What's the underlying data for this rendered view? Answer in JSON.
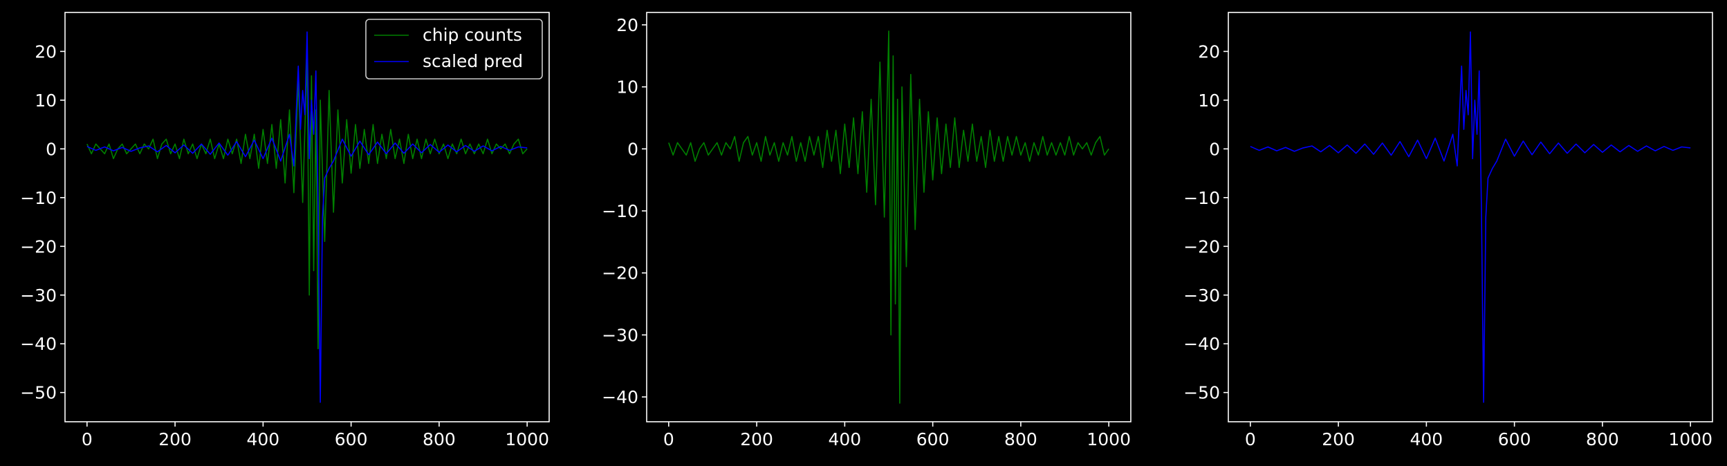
{
  "figure": {
    "background": "#000000",
    "foreground": "#ffffff"
  },
  "chart_data": [
    {
      "type": "line",
      "title": "",
      "xlabel": "",
      "ylabel": "",
      "xlim": [
        -50,
        1050
      ],
      "ylim": [
        -56,
        28
      ],
      "xticks": [
        0,
        200,
        400,
        600,
        800,
        1000
      ],
      "xtick_labels": [
        "0",
        "200",
        "400",
        "600",
        "800",
        "1000"
      ],
      "yticks": [
        20,
        10,
        0,
        -10,
        -20,
        -30,
        -40,
        -50
      ],
      "ytick_labels": [
        "20",
        "10",
        "0",
        "−10",
        "−20",
        "−30",
        "−40",
        "−50"
      ],
      "legend": {
        "position": "top-right",
        "entries": [
          "chip counts",
          "scaled pred"
        ]
      },
      "grid": false,
      "series": [
        {
          "name": "chip counts",
          "color": "#008000",
          "x": [
            0,
            10,
            20,
            30,
            40,
            50,
            60,
            70,
            80,
            90,
            100,
            110,
            120,
            130,
            140,
            150,
            160,
            170,
            180,
            190,
            200,
            210,
            220,
            230,
            240,
            250,
            260,
            270,
            280,
            290,
            300,
            310,
            320,
            330,
            340,
            350,
            360,
            370,
            380,
            390,
            400,
            410,
            420,
            430,
            440,
            450,
            460,
            470,
            480,
            490,
            500,
            505,
            510,
            515,
            520,
            525,
            530,
            540,
            550,
            560,
            570,
            580,
            590,
            600,
            610,
            620,
            630,
            640,
            650,
            660,
            670,
            680,
            690,
            700,
            710,
            720,
            730,
            740,
            750,
            760,
            770,
            780,
            790,
            800,
            810,
            820,
            830,
            840,
            850,
            860,
            870,
            880,
            890,
            900,
            910,
            920,
            930,
            940,
            950,
            960,
            970,
            980,
            990,
            1000
          ],
          "y": [
            1,
            -1,
            1,
            0,
            -1,
            1,
            -2,
            0,
            1,
            -1,
            0,
            1,
            -1,
            1,
            0,
            2,
            -2,
            1,
            2,
            -1,
            1,
            -2,
            2,
            -1,
            1,
            -2,
            1,
            -1,
            2,
            -2,
            1,
            -2,
            2,
            -1,
            2,
            -3,
            3,
            -2,
            3,
            -4,
            4,
            -3,
            5,
            -4,
            6,
            -7,
            8,
            -9,
            14,
            -11,
            19,
            -30,
            15,
            -25,
            8,
            -41,
            10,
            -19,
            12,
            -13,
            8,
            -7,
            6,
            -5,
            5,
            -4,
            4,
            -3,
            5,
            -3,
            3,
            -2,
            4,
            -2,
            2,
            -3,
            3,
            -2,
            2,
            -2,
            2,
            -1,
            2,
            -1,
            1,
            -2,
            1,
            -1,
            2,
            -1,
            1,
            -1,
            1,
            -1,
            2,
            -1,
            1,
            0,
            1,
            -1,
            1,
            2,
            -1,
            0
          ]
        },
        {
          "name": "scaled pred",
          "color": "#0000ff",
          "x": [
            0,
            20,
            40,
            60,
            80,
            100,
            120,
            140,
            160,
            180,
            200,
            220,
            240,
            260,
            280,
            300,
            320,
            340,
            360,
            380,
            400,
            420,
            440,
            460,
            470,
            480,
            485,
            490,
            495,
            500,
            505,
            510,
            515,
            520,
            525,
            530,
            535,
            540,
            550,
            560,
            580,
            600,
            620,
            640,
            660,
            680,
            700,
            720,
            740,
            760,
            780,
            800,
            820,
            840,
            860,
            880,
            900,
            920,
            940,
            960,
            980,
            1000
          ],
          "y": [
            0.5,
            -0.3,
            0.4,
            -0.4,
            0.3,
            -0.5,
            0.2,
            0.6,
            -0.6,
            0.7,
            -0.8,
            0.8,
            -0.9,
            1.0,
            -1.1,
            1.2,
            -1.3,
            1.5,
            -1.6,
            1.8,
            -2.0,
            2.2,
            -2.5,
            3.0,
            -3.5,
            17,
            4,
            12,
            7,
            24,
            -2,
            10,
            3,
            16,
            -12,
            -52,
            -14,
            -6,
            -4,
            -2.5,
            2.0,
            -1.5,
            1.6,
            -1.2,
            1.4,
            -1.0,
            1.2,
            -0.9,
            1.0,
            -0.8,
            0.9,
            -0.7,
            0.8,
            -0.6,
            0.7,
            -0.5,
            0.6,
            -0.4,
            0.5,
            -0.3,
            0.4,
            0.2
          ]
        }
      ]
    },
    {
      "type": "line",
      "title": "",
      "xlabel": "",
      "ylabel": "",
      "xlim": [
        -50,
        1050
      ],
      "ylim": [
        -44,
        22
      ],
      "xticks": [
        0,
        200,
        400,
        600,
        800,
        1000
      ],
      "xtick_labels": [
        "0",
        "200",
        "400",
        "600",
        "800",
        "1000"
      ],
      "yticks": [
        20,
        10,
        0,
        -10,
        -20,
        -30,
        -40
      ],
      "ytick_labels": [
        "20",
        "10",
        "0",
        "−10",
        "−20",
        "−30",
        "−40"
      ],
      "grid": false,
      "series": [
        {
          "name": "chip counts",
          "color": "#008000",
          "x": [
            0,
            10,
            20,
            30,
            40,
            50,
            60,
            70,
            80,
            90,
            100,
            110,
            120,
            130,
            140,
            150,
            160,
            170,
            180,
            190,
            200,
            210,
            220,
            230,
            240,
            250,
            260,
            270,
            280,
            290,
            300,
            310,
            320,
            330,
            340,
            350,
            360,
            370,
            380,
            390,
            400,
            410,
            420,
            430,
            440,
            450,
            460,
            470,
            480,
            490,
            500,
            505,
            510,
            515,
            520,
            525,
            530,
            540,
            550,
            560,
            570,
            580,
            590,
            600,
            610,
            620,
            630,
            640,
            650,
            660,
            670,
            680,
            690,
            700,
            710,
            720,
            730,
            740,
            750,
            760,
            770,
            780,
            790,
            800,
            810,
            820,
            830,
            840,
            850,
            860,
            870,
            880,
            890,
            900,
            910,
            920,
            930,
            940,
            950,
            960,
            970,
            980,
            990,
            1000
          ],
          "y": [
            1,
            -1,
            1,
            0,
            -1,
            1,
            -2,
            0,
            1,
            -1,
            0,
            1,
            -1,
            1,
            0,
            2,
            -2,
            1,
            2,
            -1,
            1,
            -2,
            2,
            -1,
            1,
            -2,
            1,
            -1,
            2,
            -2,
            1,
            -2,
            2,
            -1,
            2,
            -3,
            3,
            -2,
            3,
            -4,
            4,
            -3,
            5,
            -4,
            6,
            -7,
            8,
            -9,
            14,
            -11,
            19,
            -30,
            15,
            -25,
            8,
            -41,
            10,
            -19,
            12,
            -13,
            8,
            -7,
            6,
            -5,
            5,
            -4,
            4,
            -3,
            5,
            -3,
            3,
            -2,
            4,
            -2,
            2,
            -3,
            3,
            -2,
            2,
            -2,
            2,
            -1,
            2,
            -1,
            1,
            -2,
            1,
            -1,
            2,
            -1,
            1,
            -1,
            1,
            -1,
            2,
            -1,
            1,
            0,
            1,
            -1,
            1,
            2,
            -1,
            0
          ]
        }
      ]
    },
    {
      "type": "line",
      "title": "",
      "xlabel": "",
      "ylabel": "",
      "xlim": [
        -50,
        1050
      ],
      "ylim": [
        -56,
        28
      ],
      "xticks": [
        0,
        200,
        400,
        600,
        800,
        1000
      ],
      "xtick_labels": [
        "0",
        "200",
        "400",
        "600",
        "800",
        "1000"
      ],
      "yticks": [
        20,
        10,
        0,
        -10,
        -20,
        -30,
        -40,
        -50
      ],
      "ytick_labels": [
        "20",
        "10",
        "0",
        "−10",
        "−20",
        "−30",
        "−40",
        "−50"
      ],
      "grid": false,
      "series": [
        {
          "name": "scaled pred",
          "color": "#0000ff",
          "x": [
            0,
            20,
            40,
            60,
            80,
            100,
            120,
            140,
            160,
            180,
            200,
            220,
            240,
            260,
            280,
            300,
            320,
            340,
            360,
            380,
            400,
            420,
            440,
            460,
            470,
            480,
            485,
            490,
            495,
            500,
            505,
            510,
            515,
            520,
            525,
            530,
            535,
            540,
            550,
            560,
            580,
            600,
            620,
            640,
            660,
            680,
            700,
            720,
            740,
            760,
            780,
            800,
            820,
            840,
            860,
            880,
            900,
            920,
            940,
            960,
            980,
            1000
          ],
          "y": [
            0.5,
            -0.3,
            0.4,
            -0.4,
            0.3,
            -0.5,
            0.2,
            0.6,
            -0.6,
            0.7,
            -0.8,
            0.8,
            -0.9,
            1.0,
            -1.1,
            1.2,
            -1.3,
            1.5,
            -1.6,
            1.8,
            -2.0,
            2.2,
            -2.5,
            3.0,
            -3.5,
            17,
            4,
            12,
            7,
            24,
            -2,
            10,
            3,
            16,
            -12,
            -52,
            -14,
            -6,
            -4,
            -2.5,
            2.0,
            -1.5,
            1.6,
            -1.2,
            1.4,
            -1.0,
            1.2,
            -0.9,
            1.0,
            -0.8,
            0.9,
            -0.7,
            0.8,
            -0.6,
            0.7,
            -0.5,
            0.6,
            -0.4,
            0.5,
            -0.3,
            0.4,
            0.2
          ]
        }
      ]
    }
  ]
}
